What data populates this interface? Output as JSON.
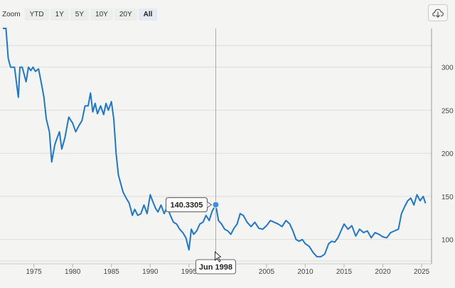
{
  "toolbar": {
    "zoom_label": "Zoom",
    "buttons": [
      "YTD",
      "1Y",
      "5Y",
      "10Y",
      "20Y",
      "All"
    ],
    "active": "All"
  },
  "export_icon": "cloud-download-icon",
  "colors": {
    "line": "#1f77cc",
    "grid": "#dcdedc",
    "text": "#444444",
    "background": "#f4f5f3"
  },
  "tooltip": {
    "value": "140.3305",
    "date_label": "Jun 1998",
    "x": 1998.45,
    "y": 140.33
  },
  "chart_data": {
    "type": "line",
    "title": "",
    "xlabel": "",
    "ylabel": "",
    "xlim": [
      1971,
      2026
    ],
    "ylim": [
      75,
      345
    ],
    "x_ticks": [
      1975,
      1980,
      1985,
      1990,
      1995,
      2000,
      2005,
      2010,
      2015,
      2020,
      2025
    ],
    "x_tick_labels": [
      "1975",
      "1980",
      "1985",
      "1990",
      "1995",
      "2000",
      "2005",
      "2010",
      "2015",
      "2020",
      "2025"
    ],
    "y_ticks": [
      100,
      150,
      200,
      250,
      300
    ],
    "y_tick_labels": [
      "100",
      "150",
      "200",
      "250",
      "300"
    ],
    "grid": true,
    "series": [
      {
        "name": "",
        "x": [
          1971.0,
          1971.4,
          1971.7,
          1972.0,
          1972.5,
          1973.0,
          1973.2,
          1973.5,
          1974.0,
          1974.3,
          1974.6,
          1974.9,
          1975.2,
          1975.6,
          1976.0,
          1976.3,
          1976.6,
          1977.0,
          1977.3,
          1977.7,
          1978.0,
          1978.3,
          1978.6,
          1979.0,
          1979.5,
          1980.0,
          1980.4,
          1980.8,
          1981.2,
          1981.6,
          1982.0,
          1982.3,
          1982.6,
          1982.9,
          1983.2,
          1983.6,
          1984.0,
          1984.3,
          1984.6,
          1985.0,
          1985.3,
          1985.6,
          1985.9,
          1986.2,
          1986.5,
          1986.9,
          1987.3,
          1987.7,
          1988.0,
          1988.4,
          1988.8,
          1989.2,
          1989.6,
          1990.0,
          1990.3,
          1990.7,
          1991.0,
          1991.4,
          1991.8,
          1992.2,
          1992.6,
          1993.0,
          1993.4,
          1993.8,
          1994.2,
          1994.6,
          1995.0,
          1995.3,
          1995.6,
          1996.0,
          1996.4,
          1996.8,
          1997.2,
          1997.6,
          1998.0,
          1998.45,
          1998.8,
          1999.2,
          1999.6,
          2000.0,
          2000.4,
          2000.8,
          2001.2,
          2001.6,
          2002.0,
          2002.5,
          2003.0,
          2003.5,
          2004.0,
          2004.5,
          2005.0,
          2005.5,
          2006.0,
          2006.5,
          2007.0,
          2007.5,
          2008.0,
          2008.4,
          2008.8,
          2009.2,
          2009.6,
          2010.0,
          2010.5,
          2011.0,
          2011.5,
          2012.0,
          2012.5,
          2013.0,
          2013.4,
          2013.8,
          2014.2,
          2014.6,
          2015.0,
          2015.5,
          2016.0,
          2016.5,
          2017.0,
          2017.5,
          2018.0,
          2018.5,
          2019.0,
          2019.5,
          2020.0,
          2020.5,
          2021.0,
          2021.5,
          2022.0,
          2022.4,
          2022.8,
          2023.2,
          2023.6,
          2024.0,
          2024.4,
          2024.8,
          2025.2,
          2025.5
        ],
        "y": [
          345,
          345,
          310,
          300,
          300,
          265,
          300,
          300,
          283,
          300,
          296,
          300,
          295,
          298,
          280,
          265,
          240,
          225,
          190,
          210,
          218,
          225,
          205,
          218,
          242,
          235,
          225,
          232,
          238,
          255,
          255,
          270,
          248,
          258,
          246,
          255,
          245,
          258,
          250,
          260,
          240,
          200,
          175,
          165,
          155,
          148,
          142,
          128,
          135,
          128,
          130,
          140,
          130,
          152,
          145,
          136,
          132,
          140,
          130,
          138,
          128,
          120,
          118,
          112,
          108,
          102,
          88,
          112,
          106,
          110,
          118,
          120,
          128,
          122,
          133,
          140.33,
          122,
          118,
          112,
          110,
          106,
          113,
          118,
          130,
          128,
          120,
          115,
          120,
          113,
          112,
          116,
          122,
          120,
          118,
          115,
          122,
          118,
          110,
          100,
          98,
          100,
          95,
          92,
          85,
          80,
          80,
          83,
          95,
          98,
          97,
          102,
          110,
          118,
          112,
          116,
          104,
          112,
          108,
          110,
          102,
          108,
          106,
          103,
          102,
          108,
          110,
          112,
          130,
          138,
          145,
          148,
          140,
          152,
          145,
          150,
          142
        ]
      }
    ]
  }
}
